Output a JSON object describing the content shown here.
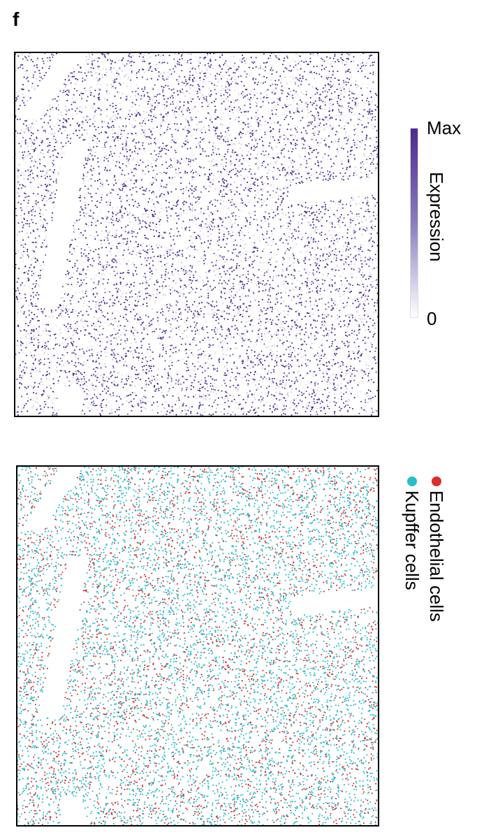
{
  "panel_label": "f",
  "colors": {
    "expression_high": "#4b2a8c",
    "expression_low": "#ffffff",
    "endothelial": "#d7302f",
    "kupffer": "#2bbec8"
  },
  "chart_data": [
    {
      "type": "scatter",
      "title": "",
      "xlabel": "",
      "ylabel": "",
      "colorbar": {
        "title": "Expression",
        "max_label": "Max",
        "min_label": "0",
        "colors": [
          "#ffffff",
          "#4b2a8c"
        ]
      },
      "grid": false,
      "axes_ticks": false,
      "approx_points": 9000,
      "description_of_pattern": "spatial expression map; dense expression except along vessel-like gaps"
    },
    {
      "type": "scatter",
      "title": "",
      "xlabel": "",
      "ylabel": "",
      "legend": {
        "placement": "right",
        "orientation": "vertical-text"
      },
      "series": [
        {
          "name": "Endothelial cells",
          "color": "#d7302f",
          "approx_points": 3000
        },
        {
          "name": "Kupffer cells",
          "color": "#2bbec8",
          "approx_points": 6500
        }
      ],
      "grid": false,
      "axes_ticks": false
    }
  ]
}
